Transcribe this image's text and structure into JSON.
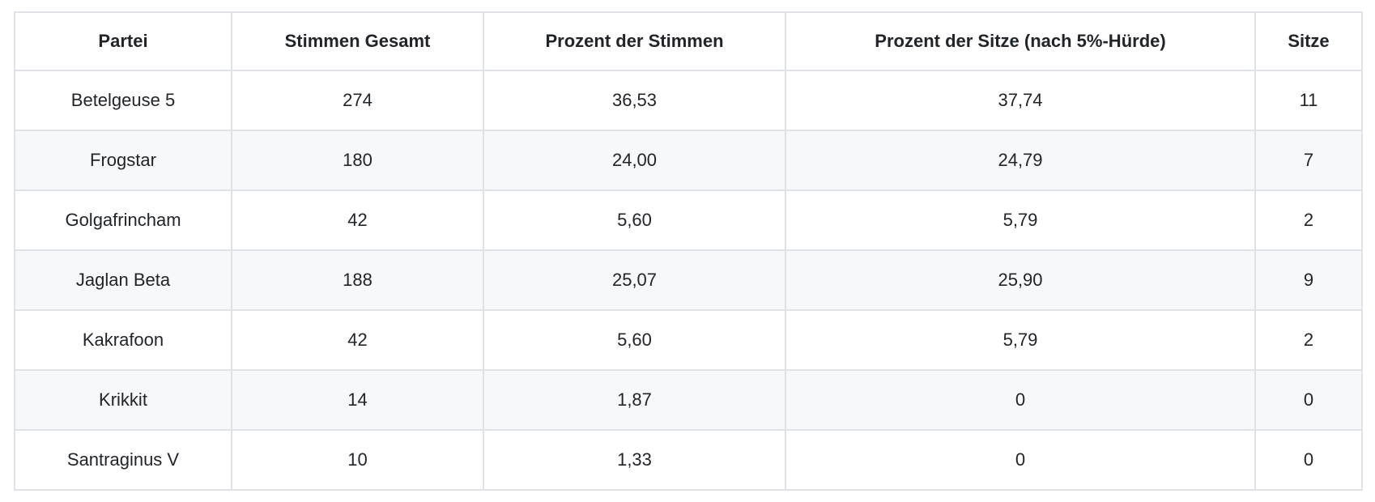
{
  "colors": {
    "background": "#ffffff",
    "stripe": "#f6f8fa",
    "border": "#dfe3e7",
    "text": "#212529"
  },
  "chart_data": {
    "type": "table",
    "columns": [
      "Partei",
      "Stimmen Gesamt",
      "Prozent der Stimmen",
      "Prozent der Sitze (nach 5%-Hürde)",
      "Sitze"
    ],
    "rows": [
      [
        "Betelgeuse 5",
        "274",
        "36,53",
        "37,74",
        "11"
      ],
      [
        "Frogstar",
        "180",
        "24,00",
        "24,79",
        "7"
      ],
      [
        "Golgafrincham",
        "42",
        "5,60",
        "5,79",
        "2"
      ],
      [
        "Jaglan Beta",
        "188",
        "25,07",
        "25,90",
        "9"
      ],
      [
        "Kakrafoon",
        "42",
        "5,60",
        "5,79",
        "2"
      ],
      [
        "Krikkit",
        "14",
        "1,87",
        "0",
        "0"
      ],
      [
        "Santraginus V",
        "10",
        "1,33",
        "0",
        "0"
      ]
    ]
  }
}
